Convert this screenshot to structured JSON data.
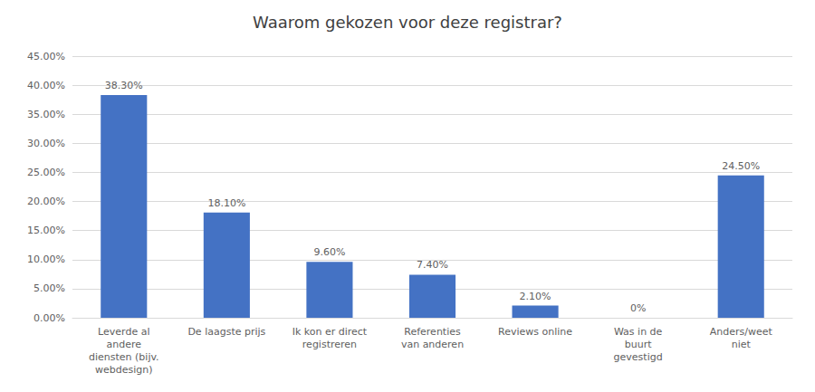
{
  "chart_data": {
    "type": "bar",
    "title": "Waarom gekozen voor deze registrar?",
    "categories": [
      "Leverde al\nandere\ndiensten (bijv.\nwebdesign)",
      "De laagste prijs",
      "Ik kon er direct\nregistreren",
      "Referenties\nvan anderen",
      "Reviews online",
      "Was in de\nbuurt\ngevestigd",
      "Anders/weet\nniet"
    ],
    "values": [
      0.383,
      0.181,
      0.096,
      0.074,
      0.021,
      0.0,
      0.245
    ],
    "value_labels": [
      "38.30%",
      "18.10%",
      "9.60%",
      "7.40%",
      "2.10%",
      "0%",
      "24.50%"
    ],
    "color": "#4472C4",
    "ylim": [
      0,
      0.45
    ],
    "yticks": [
      {
        "value": 0.0,
        "label": "0.00%"
      },
      {
        "value": 0.05,
        "label": "5.00%"
      },
      {
        "value": 0.1,
        "label": "10.00%"
      },
      {
        "value": 0.15,
        "label": "15.00%"
      },
      {
        "value": 0.2,
        "label": "20.00%"
      },
      {
        "value": 0.25,
        "label": "25.00%"
      },
      {
        "value": 0.3,
        "label": "30.00%"
      },
      {
        "value": 0.35,
        "label": "35.00%"
      },
      {
        "value": 0.4,
        "label": "40.00%"
      },
      {
        "value": 0.45,
        "label": "45.00%"
      }
    ],
    "grid": true,
    "data_labels": true
  }
}
